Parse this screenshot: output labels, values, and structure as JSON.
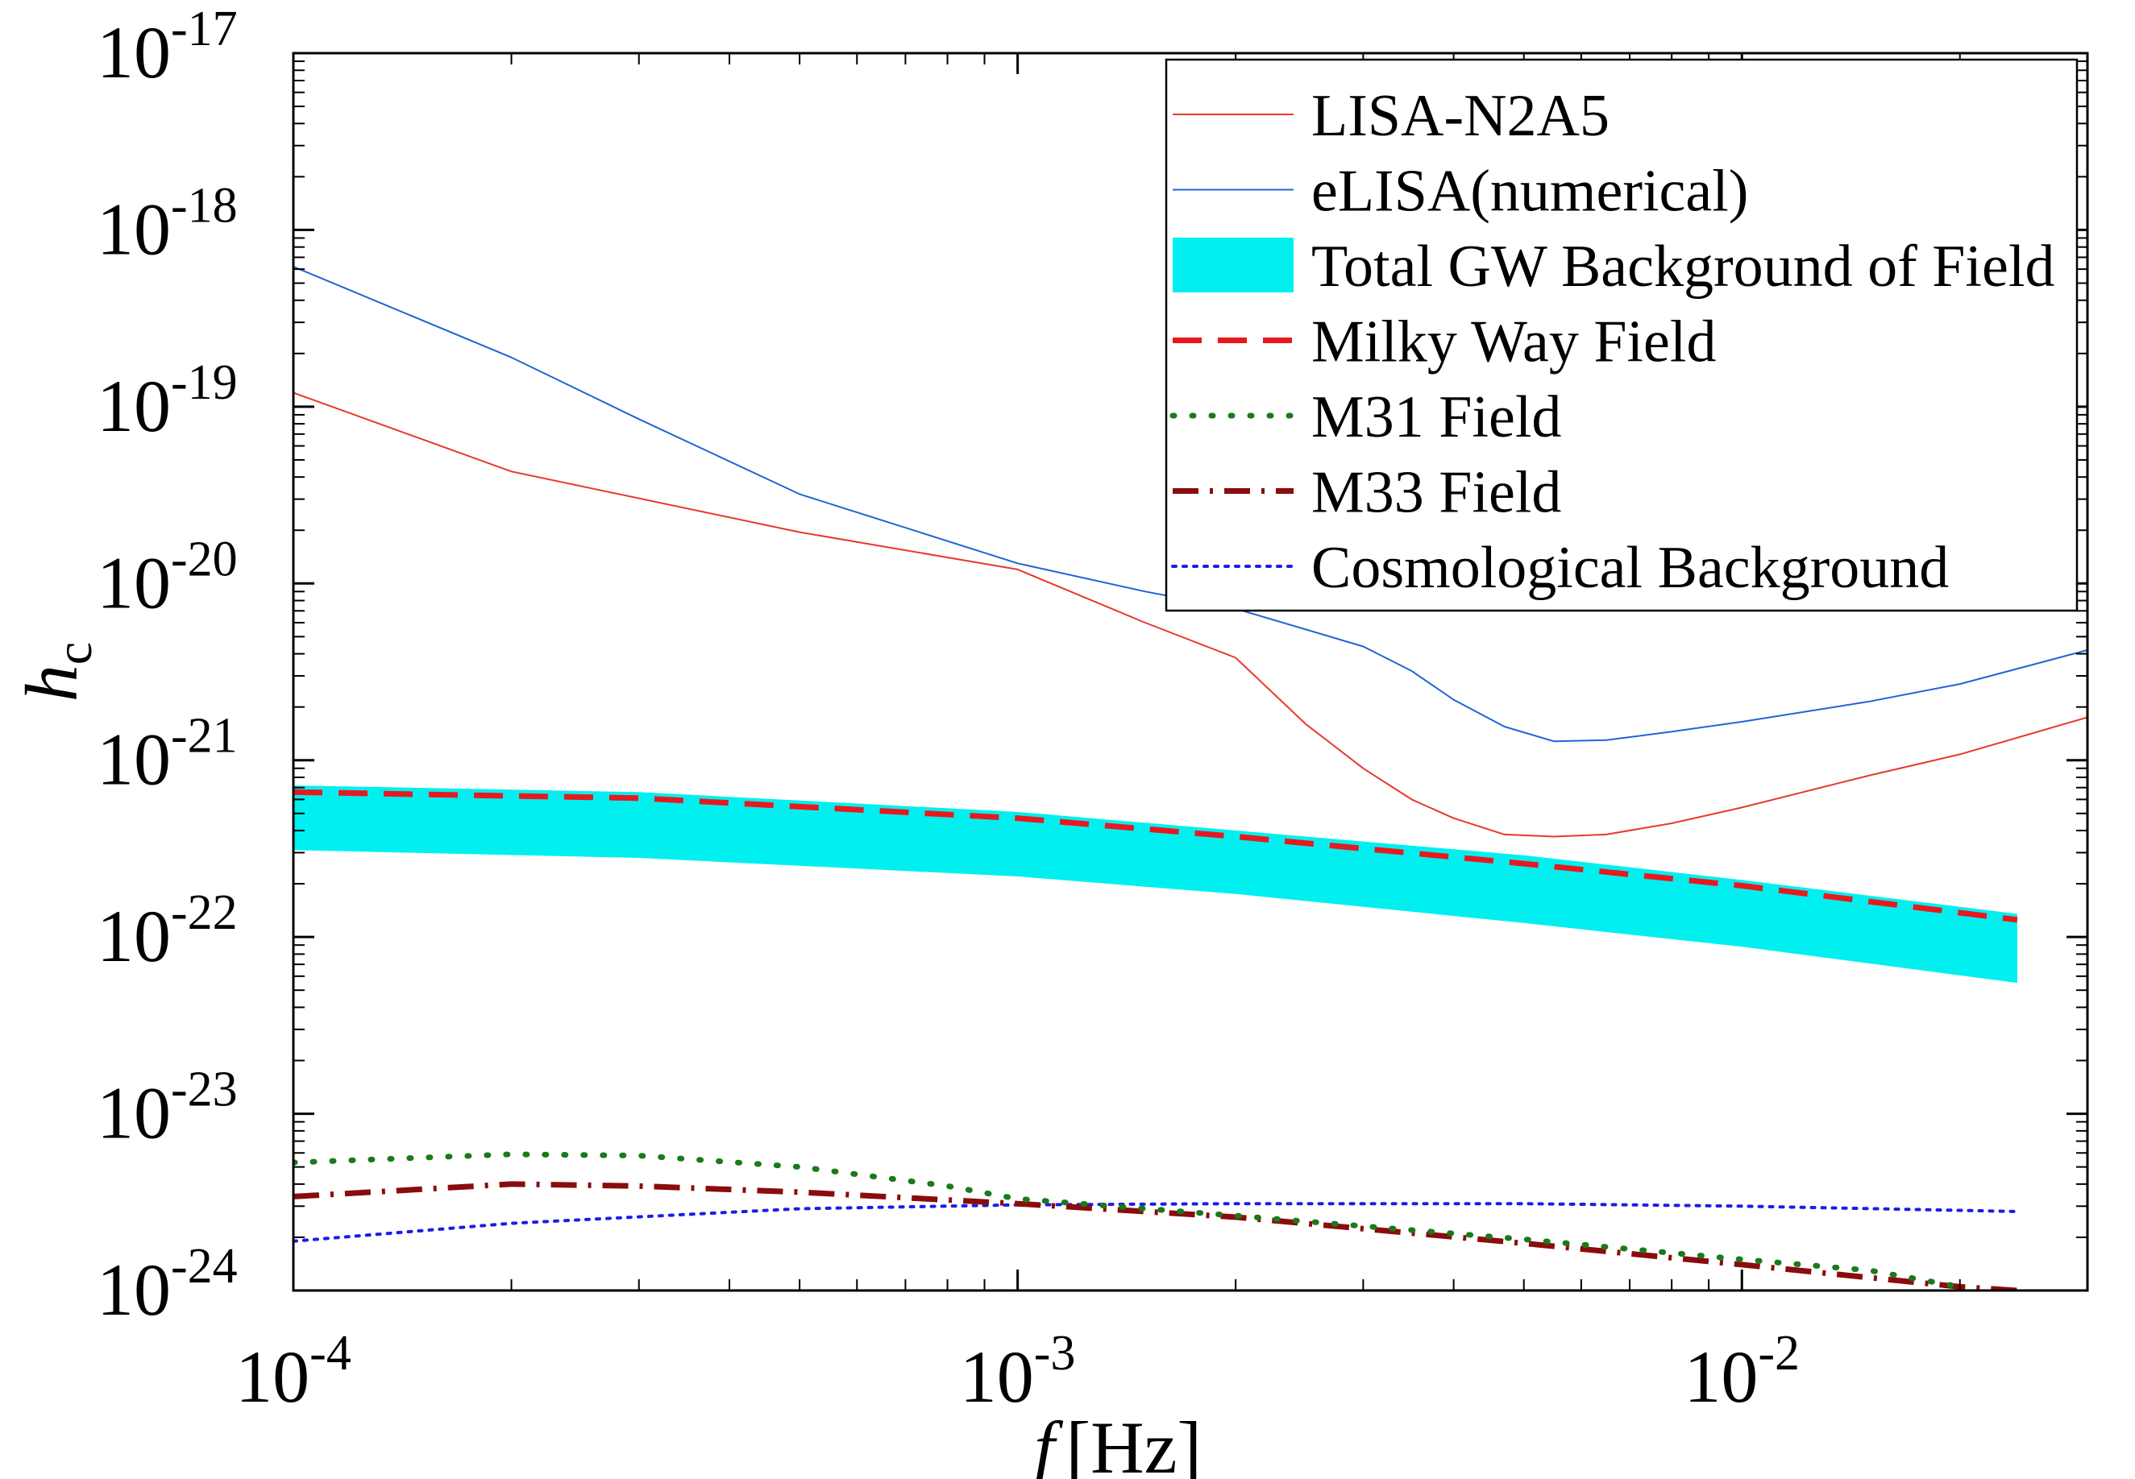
{
  "chart_data": {
    "type": "line",
    "title": "",
    "xlabel": "f",
    "xlabel_unit": "[Hz]",
    "ylabel": "h",
    "ylabel_sub": "c",
    "xscale": "log",
    "yscale": "log",
    "xlim": [
      0.0001,
      0.03
    ],
    "ylim": [
      1e-24,
      1e-17
    ],
    "x_ticks": [
      {
        "value": 0.0001,
        "base": "10",
        "exp": "-4"
      },
      {
        "value": 0.001,
        "base": "10",
        "exp": "-3"
      },
      {
        "value": 0.01,
        "base": "10",
        "exp": "-2"
      }
    ],
    "y_ticks": [
      {
        "value": 1e-24,
        "base": "10",
        "exp": "-24"
      },
      {
        "value": 1e-23,
        "base": "10",
        "exp": "-23"
      },
      {
        "value": 1e-22,
        "base": "10",
        "exp": "-22"
      },
      {
        "value": 1e-21,
        "base": "10",
        "exp": "-21"
      },
      {
        "value": 1e-20,
        "base": "10",
        "exp": "-20"
      },
      {
        "value": 1e-19,
        "base": "10",
        "exp": "-19"
      },
      {
        "value": 1e-18,
        "base": "10",
        "exp": "-18"
      },
      {
        "value": 1e-17,
        "base": "10",
        "exp": "-17"
      }
    ],
    "legend_position": "top-right",
    "band": {
      "name": "Total GW Background of Field",
      "color": "#00f0f0",
      "x": [
        0.0001,
        0.0003,
        0.001,
        0.002,
        0.005,
        0.01,
        0.024
      ],
      "upper": [
        7.2e-22,
        6.6e-22,
        5.1e-22,
        4e-22,
        2.9e-22,
        2.1e-22,
        1.35e-22
      ],
      "lower": [
        3.1e-22,
        2.8e-22,
        2.2e-22,
        1.75e-22,
        1.2e-22,
        8.8e-23,
        5.5e-23
      ]
    },
    "series": [
      {
        "name": "LISA-N2A5",
        "color": "#e8382e",
        "style": "solid",
        "width": 2,
        "x": [
          0.0001,
          0.0002,
          0.0005,
          0.001,
          0.0015,
          0.002,
          0.0025,
          0.003,
          0.0035,
          0.004,
          0.0047,
          0.0055,
          0.0065,
          0.008,
          0.01,
          0.015,
          0.02,
          0.03
        ],
        "y": [
          1.2e-19,
          4.3e-20,
          1.95e-20,
          1.2e-20,
          6e-21,
          3.8e-21,
          1.6e-21,
          9e-22,
          6e-22,
          4.7e-22,
          3.8e-22,
          3.7e-22,
          3.8e-22,
          4.4e-22,
          5.4e-22,
          8.2e-22,
          1.08e-21,
          1.75e-21
        ]
      },
      {
        "name": "eLISA(numerical)",
        "color": "#1f64d6",
        "style": "solid",
        "width": 2,
        "x": [
          0.0001,
          0.0002,
          0.0003,
          0.0005,
          0.001,
          0.0015,
          0.002,
          0.003,
          0.0035,
          0.004,
          0.0047,
          0.0055,
          0.0065,
          0.008,
          0.01,
          0.015,
          0.02,
          0.03
        ],
        "y": [
          6.2e-19,
          1.9e-19,
          8.5e-20,
          3.2e-20,
          1.3e-20,
          9e-21,
          7.2e-21,
          4.4e-21,
          3.2e-21,
          2.2e-21,
          1.55e-21,
          1.28e-21,
          1.3e-21,
          1.45e-21,
          1.65e-21,
          2.15e-21,
          2.7e-21,
          4.2e-21
        ]
      },
      {
        "name": "Milky Way Field",
        "color": "#e8191e",
        "style": "dashed",
        "width": 7,
        "x": [
          0.0001,
          0.0003,
          0.001,
          0.002,
          0.005,
          0.01,
          0.024
        ],
        "y": [
          6.6e-22,
          6.1e-22,
          4.7e-22,
          3.7e-22,
          2.6e-22,
          1.95e-22,
          1.25e-22
        ]
      },
      {
        "name": "M31 Field",
        "color": "#1a7a1a",
        "style": "dotted",
        "width": 7,
        "x": [
          0.0001,
          0.0002,
          0.0003,
          0.0005,
          0.0008,
          0.001,
          0.002,
          0.005,
          0.01,
          0.015,
          0.02
        ],
        "y": [
          5.3e-24,
          5.9e-24,
          5.8e-24,
          5e-24,
          3.9e-24,
          3.3e-24,
          2.65e-24,
          1.95e-24,
          1.5e-24,
          1.3e-24,
          1.05e-24
        ]
      },
      {
        "name": "M33 Field",
        "color": "#8b0c0c",
        "style": "dashdot",
        "width": 7,
        "x": [
          0.0001,
          0.0002,
          0.0003,
          0.0005,
          0.001,
          0.002,
          0.005,
          0.01,
          0.02,
          0.024
        ],
        "y": [
          3.4e-24,
          4e-24,
          3.9e-24,
          3.6e-24,
          3.1e-24,
          2.6e-24,
          1.85e-24,
          1.4e-24,
          1.05e-24,
          1e-24
        ]
      },
      {
        "name": "Cosmological Background",
        "color": "#1c1ce8",
        "style": "dotted-fine",
        "width": 4,
        "x": [
          0.0001,
          0.0002,
          0.0005,
          0.001,
          0.002,
          0.005,
          0.01,
          0.024
        ],
        "y": [
          1.9e-24,
          2.4e-24,
          2.9e-24,
          3.05e-24,
          3.1e-24,
          3.1e-24,
          3e-24,
          2.8e-24
        ]
      }
    ]
  }
}
